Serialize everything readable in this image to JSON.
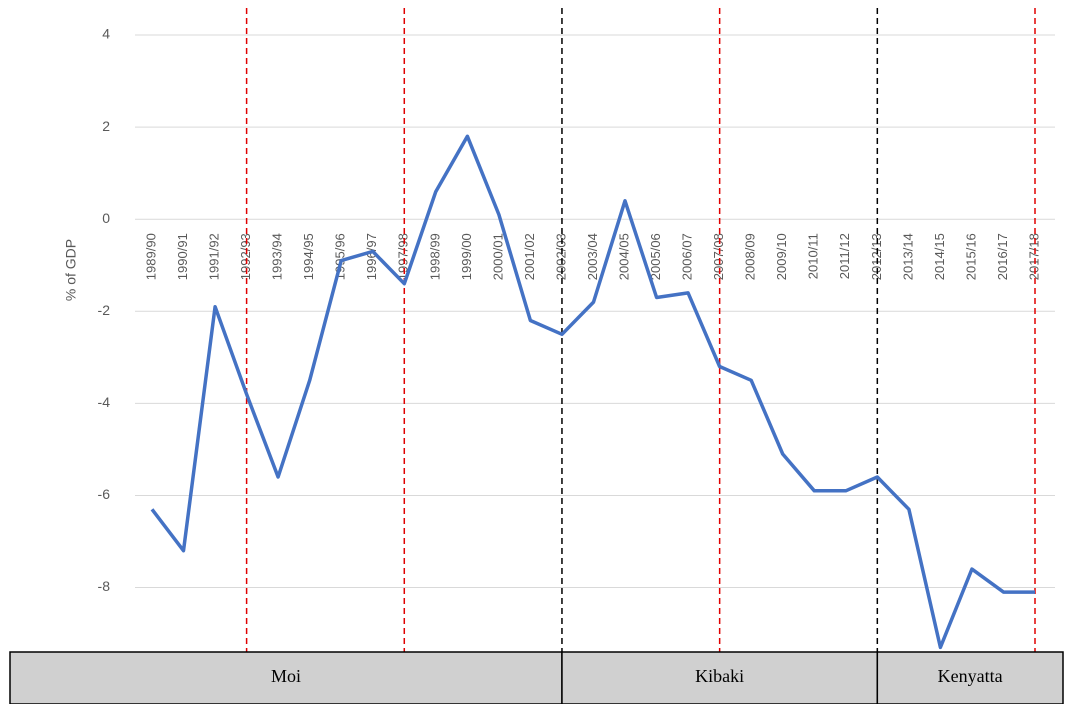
{
  "chart_data": {
    "type": "line",
    "ylabel": "% of GDP",
    "categories": [
      "1989/90",
      "1990/91",
      "1991/92",
      "1992/93",
      "1993/94",
      "1994/95",
      "1995/96",
      "1996/97",
      "1997/98",
      "1998/99",
      "1999/00",
      "2000/01",
      "2001/02",
      "2002/03",
      "2003/04",
      "2004/05",
      "2005/06",
      "2006/07",
      "2007/08",
      "2008/09",
      "2009/10",
      "2010/11",
      "2011/12",
      "2012/13",
      "2013/14",
      "2014/15",
      "2015/16",
      "2016/17",
      "2017/18"
    ],
    "values": [
      -6.3,
      -7.2,
      -1.9,
      -3.8,
      -5.6,
      -3.5,
      -0.9,
      -0.7,
      -1.4,
      0.6,
      1.8,
      0.1,
      -2.2,
      -2.5,
      -1.8,
      0.4,
      -1.7,
      -1.6,
      -3.2,
      -3.5,
      -5.1,
      -5.9,
      -5.9,
      -5.6,
      -6.3,
      -9.3,
      -7.6,
      -8.1,
      -8.1
    ],
    "color": "#4472c4",
    "ylim": [
      -9.4,
      4.5
    ],
    "yticks": [
      4,
      2,
      0,
      -2,
      -4,
      -6,
      -8
    ],
    "grid": true,
    "marker_lines": [
      {
        "category": "1992/93",
        "color": "#e00000"
      },
      {
        "category": "1997/98",
        "color": "#e00000"
      },
      {
        "category": "2002/03",
        "color": "#000000"
      },
      {
        "category": "2007/08",
        "color": "#e00000"
      },
      {
        "category": "2012/13",
        "color": "#000000"
      },
      {
        "category": "2017/18",
        "color": "#e00000"
      }
    ],
    "periods": [
      {
        "label": "Moi",
        "end": "2002/03"
      },
      {
        "label": "Kibaki",
        "end": "2012/13"
      },
      {
        "label": "Kenyatta"
      }
    ]
  }
}
